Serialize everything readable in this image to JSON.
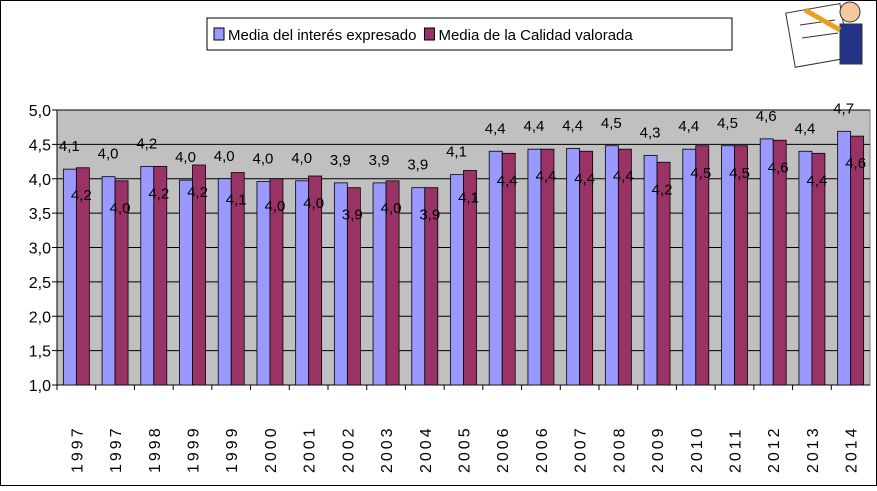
{
  "chart_data": {
    "type": "bar",
    "categories": [
      "1997",
      "1997",
      "1998",
      "1999",
      "1999",
      "2000",
      "2001",
      "2002",
      "2003",
      "2004",
      "2005",
      "2006",
      "2006",
      "2007",
      "2008",
      "2009",
      "2010",
      "2011",
      "2012",
      "2013",
      "2014"
    ],
    "series": [
      {
        "name": "Media del interés expresado",
        "color": "#9999ff",
        "values": [
          4.14,
          4.03,
          4.18,
          3.98,
          4.0,
          3.96,
          3.97,
          3.94,
          3.94,
          3.87,
          4.06,
          4.4,
          4.43,
          4.44,
          4.48,
          4.34,
          4.43,
          4.48,
          4.58,
          4.4,
          4.69
        ],
        "value_labels": [
          "4,1",
          "4,0",
          "4,2",
          "4,0",
          "4,0",
          "4,0",
          "4,0",
          "3,9",
          "3,9",
          "3,9",
          "4,1",
          "4,4",
          "4,4",
          "4,4",
          "4,5",
          "4,3",
          "4,4",
          "4,5",
          "4,6",
          "4,4",
          "4,7"
        ]
      },
      {
        "name": "Media de la Calidad valorada",
        "color": "#993366",
        "values": [
          4.16,
          3.97,
          4.18,
          4.2,
          4.09,
          4.0,
          4.04,
          3.87,
          3.97,
          3.87,
          4.12,
          4.37,
          4.43,
          4.4,
          4.43,
          4.24,
          4.48,
          4.48,
          4.56,
          4.37,
          4.62
        ],
        "value_labels": [
          "4,2",
          "4,0",
          "4,2",
          "4,2",
          "4,1",
          "4,0",
          "4,0",
          "3,9",
          "4,0",
          "3,9",
          "4,1",
          "4,4",
          "4,4",
          "4,4",
          "4,4",
          "4,2",
          "4,5",
          "4,5",
          "4,6",
          "4,4",
          "4,6"
        ]
      }
    ],
    "ylim": [
      1,
      5
    ],
    "yticks": [
      {
        "value": 1,
        "label": "1,0"
      },
      {
        "value": 1.5,
        "label": "1,5"
      },
      {
        "value": 2,
        "label": "2,0"
      },
      {
        "value": 2.5,
        "label": "2,5"
      },
      {
        "value": 3,
        "label": "3,0"
      },
      {
        "value": 3.5,
        "label": "3,5"
      },
      {
        "value": 4,
        "label": "4,0"
      },
      {
        "value": 4.5,
        "label": "4,5"
      },
      {
        "value": 5,
        "label": "5,0"
      }
    ],
    "grid": true,
    "legend": "top"
  }
}
